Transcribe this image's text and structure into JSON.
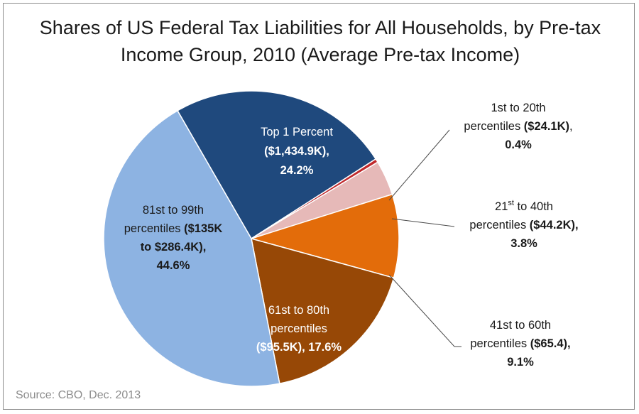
{
  "chart_data": {
    "type": "pie",
    "title": "Shares of US Federal Tax Liabilities for All Households, by Pre-tax Income Group, 2010 (Average Pre-tax Income)",
    "title_lines": [
      "Shares of US Federal Tax Liabilities for All Households, by Pre-tax",
      "Income Group, 2010 (Average Pre-tax Income)"
    ],
    "slices": [
      {
        "label": "Top 1 Percent ($1,434.9K), 24.2%",
        "value": 24.2,
        "color": "#1f497d"
      },
      {
        "label": "1st to 20th percentiles ($24.1K), 0.4%",
        "value": 0.4,
        "color": "#c0282b"
      },
      {
        "label": "21st to 40th percentiles ($44.2K), 3.8%",
        "value": 3.8,
        "color": "#e6b9b8"
      },
      {
        "label": "41st to 60th percentiles ($65.4), 9.1%",
        "value": 9.1,
        "color": "#e36c0a"
      },
      {
        "label": "61st to 80th percentiles ($95.5K), 17.6%",
        "value": 17.6,
        "color": "#974806"
      },
      {
        "label": "81st to 99th percentiles ($135K to $286.4K), 44.6%",
        "value": 44.6,
        "color": "#8db3e2"
      }
    ],
    "labels": {
      "top1": {
        "line1": "Top 1 Percent",
        "line2": "($1,434.9K),",
        "line3": "24.2%"
      },
      "p1_20": {
        "line1": "1st to 20th",
        "line2a": "percentiles ",
        "line2b": "($24.1K)",
        "line2c": ",",
        "line3": "0.4%"
      },
      "p21_40": {
        "line1a": "21",
        "line1sup": "st",
        "line1b": " to 40th",
        "line2a": "percentiles ",
        "line2b": "($44.2K),",
        "line3": "3.8%"
      },
      "p41_60": {
        "line1": "41st to 60th",
        "line2a": "percentiles ",
        "line2b": "($65.4),",
        "line3": "9.1%"
      },
      "p61_80": {
        "line1": "61st to 80th",
        "line2": "percentiles",
        "line3": "($95.5K), 17.6%"
      },
      "p81_99": {
        "line1": "81st to 99th",
        "line2a": "percentiles ",
        "line2b": "($135K",
        "line3": "to $286.4K),",
        "line4": "44.6%"
      }
    },
    "source": "Source: CBO, Dec. 2013"
  }
}
